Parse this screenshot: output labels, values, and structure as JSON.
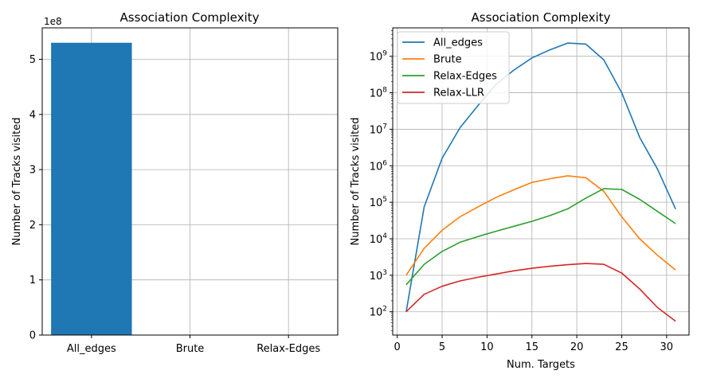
{
  "chart_data": [
    {
      "type": "bar",
      "title": "Association Complexity",
      "xlabel": "",
      "ylabel": "Number of Tracks visited",
      "y_offset_label": "1e8",
      "categories": [
        "All_edges",
        "Brute",
        "Relax-Edges"
      ],
      "values": [
        530000000,
        500000,
        230000
      ],
      "ylim": [
        0,
        557000000
      ],
      "yticks": [
        0,
        100000000,
        200000000,
        300000000,
        400000000,
        500000000
      ],
      "ytick_labels": [
        "0",
        "1",
        "2",
        "3",
        "4",
        "5"
      ],
      "grid": true,
      "bar_color": "#1f77b4"
    },
    {
      "type": "line",
      "title": "Association Complexity",
      "xlabel": "Num. Targets",
      "ylabel": "Number of Tracks visited",
      "yscale": "log",
      "xlim": [
        -0.5,
        32.5
      ],
      "xticks": [
        0,
        5,
        10,
        15,
        20,
        25,
        30
      ],
      "ylim": [
        23,
        6000000000
      ],
      "yticks": [
        100,
        1000,
        10000,
        100000,
        1000000,
        10000000,
        100000000,
        1000000000
      ],
      "ytick_exponents": [
        "2",
        "3",
        "4",
        "5",
        "6",
        "7",
        "8",
        "9"
      ],
      "ytick_base": "10",
      "grid": true,
      "legend_position": "top-left",
      "x": [
        1,
        3,
        5,
        7,
        9,
        11,
        13,
        15,
        17,
        19,
        21,
        23,
        25,
        27,
        29,
        31
      ],
      "series": [
        {
          "name": "All_edges",
          "color": "#1f77b4",
          "values": [
            100,
            75000,
            1600000,
            11000000,
            45000000,
            170000000,
            420000000,
            900000000,
            1500000000,
            2300000000,
            2150000000,
            800000000,
            100000000,
            6000000,
            800000,
            65000
          ]
        },
        {
          "name": "Brute",
          "color": "#ff7f0e",
          "values": [
            1000,
            5500,
            17000,
            40000,
            75000,
            135000,
            220000,
            350000,
            440000,
            530000,
            470000,
            200000,
            40000,
            10000,
            3500,
            1400
          ]
        },
        {
          "name": "Relax-Edges",
          "color": "#2ca02c",
          "values": [
            550,
            2000,
            4500,
            8000,
            11500,
            16000,
            22000,
            30000,
            43000,
            66000,
            130000,
            235000,
            225000,
            120000,
            56000,
            26000
          ]
        },
        {
          "name": "Relax-LLR",
          "color": "#d62728",
          "values": [
            100,
            300,
            500,
            700,
            880,
            1080,
            1320,
            1550,
            1760,
            1950,
            2100,
            2000,
            1150,
            420,
            130,
            55
          ]
        }
      ]
    }
  ]
}
